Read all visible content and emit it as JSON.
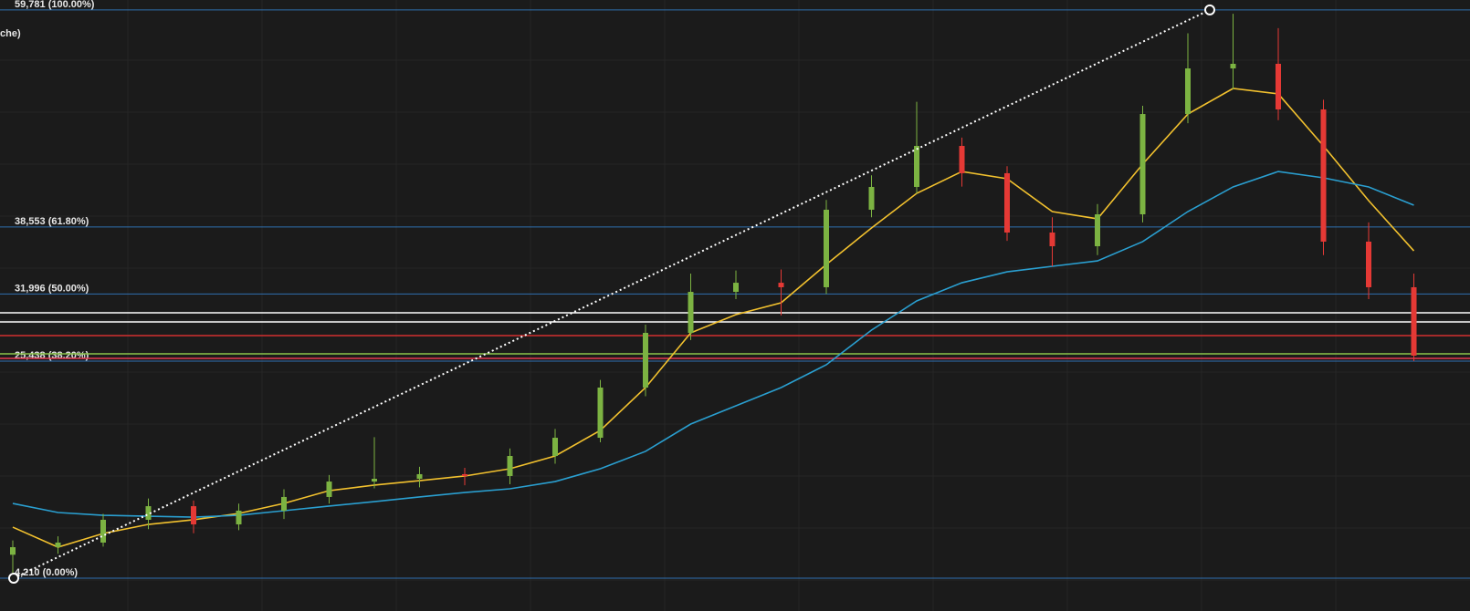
{
  "chart_data": {
    "type": "candlestick",
    "legend_fragment": "che)",
    "ylim": [
      1000,
      60750
    ],
    "grid": true,
    "up_color": "#7cb342",
    "down_color": "#e53935",
    "open": [
      6500,
      7240,
      7690,
      9920,
      11250,
      9470,
      10810,
      12150,
      13660,
      13930,
      14380,
      14200,
      16160,
      17940,
      22850,
      28200,
      32210,
      33100,
      32660,
      40240,
      42470,
      46480,
      43810,
      38010,
      36670,
      39790,
      49600,
      54060,
      54510,
      50050,
      37120,
      32660
    ],
    "high": [
      7900,
      8300,
      10500,
      12000,
      11800,
      11500,
      12900,
      14300,
      18000,
      15100,
      15000,
      16900,
      18800,
      23600,
      29000,
      34000,
      34300,
      34400,
      41200,
      43600,
      50800,
      47300,
      44500,
      39500,
      40800,
      50400,
      57500,
      59400,
      58000,
      51000,
      39000,
      34000
    ],
    "low": [
      4300,
      6600,
      7300,
      9000,
      8600,
      8900,
      10000,
      11500,
      13000,
      13100,
      13300,
      13400,
      15400,
      17500,
      22000,
      27500,
      31500,
      29900,
      32000,
      39500,
      41800,
      42500,
      37200,
      34700,
      35800,
      39000,
      48700,
      52000,
      49000,
      35800,
      31500,
      25438
    ],
    "close": [
      7240,
      7690,
      9920,
      11250,
      9470,
      10810,
      12150,
      13660,
      13930,
      14380,
      14200,
      16160,
      17940,
      22850,
      28200,
      32210,
      33100,
      32660,
      40240,
      42470,
      46480,
      43810,
      38010,
      36670,
      39790,
      49600,
      54060,
      54510,
      50050,
      37120,
      32660,
      25970
    ],
    "series": [
      {
        "color": "#f2c12e",
        "values": [
          9200,
          7240,
          8580,
          9470,
          9920,
          10540,
          11520,
          12770,
          13310,
          13750,
          14200,
          14910,
          16160,
          18660,
          22850,
          28200,
          29980,
          31140,
          34890,
          38460,
          41840,
          43980,
          43270,
          40060,
          39350,
          44700,
          49600,
          52100,
          51570,
          46480,
          41130,
          36220
        ]
      },
      {
        "color": "#2a9fd0",
        "values": [
          11520,
          10630,
          10360,
          10270,
          10180,
          10360,
          10810,
          11260,
          11700,
          12150,
          12590,
          12950,
          13660,
          14910,
          16610,
          19280,
          21070,
          22850,
          25080,
          28470,
          31320,
          33100,
          34170,
          34710,
          35240,
          37120,
          40060,
          42470,
          43980,
          43360,
          42470,
          40680
        ]
      }
    ],
    "fib_levels": [
      {
        "value": 59781,
        "label": "59,781 (100.00%)"
      },
      {
        "value": 38553,
        "label": "38,553 (61.80%)"
      },
      {
        "value": 31996,
        "label": "31,996 (50.00%)"
      },
      {
        "value": 25438,
        "label": "25,438 (38.20%)"
      },
      {
        "value": 4210,
        "label": "4,210 (0.00%)"
      }
    ],
    "fib_color": "#2f6fb0",
    "levels": [
      {
        "value": 30160,
        "color": "#ffffff"
      },
      {
        "value": 29270,
        "color": "#ffffff"
      },
      {
        "value": 27930,
        "color": "#d32f2f"
      },
      {
        "value": 26150,
        "color": "#8bc34a"
      },
      {
        "value": 25700,
        "color": "#e53950"
      }
    ]
  }
}
